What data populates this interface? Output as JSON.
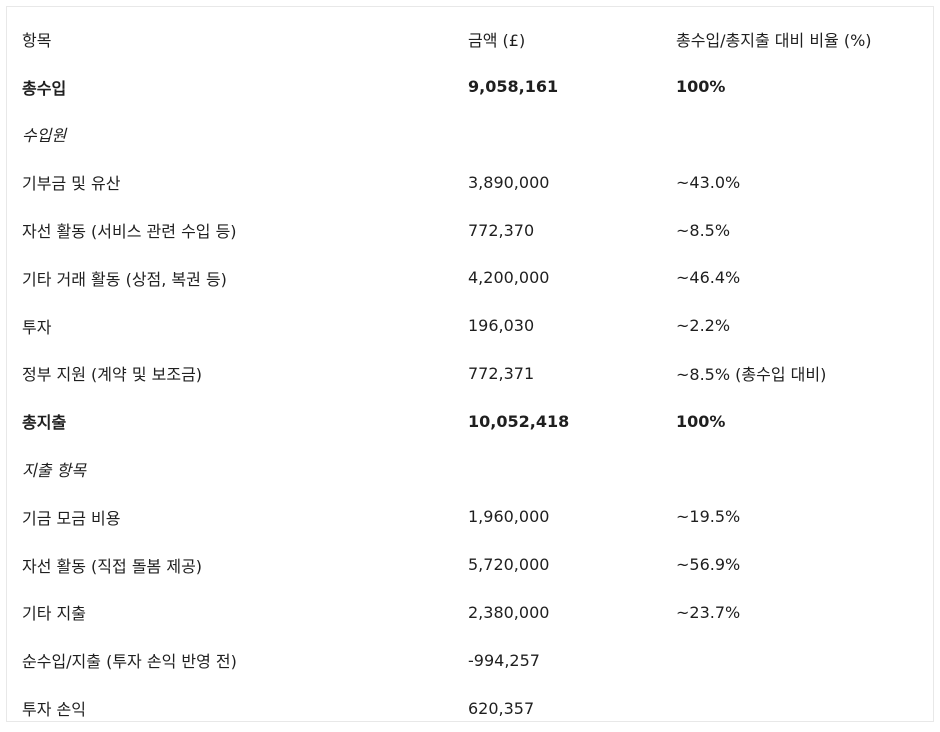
{
  "table": {
    "headers": [
      "항목",
      "금액 (£)",
      "총수입/총지출 대비 비율 (%)"
    ],
    "rows": [
      {
        "style": "bold",
        "cells": [
          "총수입",
          "9,058,161",
          "100%"
        ]
      },
      {
        "style": "italic",
        "cells": [
          "수입원",
          "",
          ""
        ]
      },
      {
        "style": "normal",
        "cells": [
          "기부금 및 유산",
          "3,890,000",
          "~43.0%"
        ]
      },
      {
        "style": "normal",
        "cells": [
          "자선 활동 (서비스 관련 수입 등)",
          "772,370",
          "~8.5%"
        ]
      },
      {
        "style": "normal",
        "cells": [
          "기타 거래 활동 (상점, 복권 등)",
          "4,200,000",
          "~46.4%"
        ]
      },
      {
        "style": "normal",
        "cells": [
          "투자",
          "196,030",
          "~2.2%"
        ]
      },
      {
        "style": "normal",
        "cells": [
          "정부 지원 (계약 및 보조금)",
          "772,371",
          "~8.5% (총수입 대비)"
        ]
      },
      {
        "style": "bold",
        "cells": [
          "총지출",
          "10,052,418",
          "100%"
        ]
      },
      {
        "style": "italic",
        "cells": [
          "지출 항목",
          "",
          ""
        ]
      },
      {
        "style": "normal",
        "cells": [
          "기금 모금 비용",
          "1,960,000",
          "~19.5%"
        ]
      },
      {
        "style": "normal",
        "cells": [
          "자선 활동 (직접 돌봄 제공)",
          "5,720,000",
          "~56.9%"
        ]
      },
      {
        "style": "normal",
        "cells": [
          "기타 지출",
          "2,380,000",
          "~23.7%"
        ]
      },
      {
        "style": "normal",
        "cells": [
          "순수입/지출 (투자 손익 반영 전)",
          "-994,257",
          ""
        ]
      },
      {
        "style": "normal",
        "cells": [
          "투자 손익",
          "620,357",
          ""
        ]
      }
    ]
  }
}
